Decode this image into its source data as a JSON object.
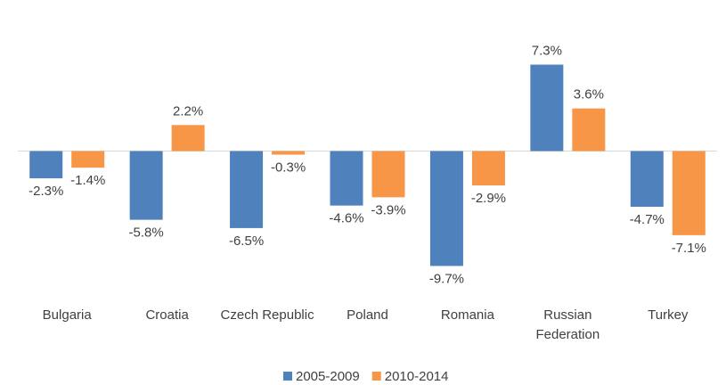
{
  "chart_data": {
    "type": "bar",
    "categories": [
      "Bulgaria",
      "Croatia",
      "Czech Republic",
      "Poland",
      "Romania",
      "Russian Federation",
      "Turkey"
    ],
    "series": [
      {
        "name": "2005-2009",
        "color": "#4f81bd",
        "values": [
          -2.3,
          -5.8,
          -6.5,
          -4.6,
          -9.7,
          7.3,
          -4.7
        ],
        "value_labels": [
          "-2.3%",
          "-5.8%",
          "-6.5%",
          "-4.6%",
          "-9.7%",
          "7.3%",
          "-4.7%"
        ]
      },
      {
        "name": "2010-2014",
        "color": "#f79646",
        "values": [
          -1.4,
          2.2,
          -0.3,
          -3.9,
          -2.9,
          3.6,
          -7.1
        ],
        "value_labels": [
          "-1.4%",
          "2.2%",
          "-0.3%",
          "-3.9%",
          "-2.9%",
          "3.6%",
          "-7.1%"
        ]
      }
    ],
    "ylim": [
      -12,
      10.5
    ],
    "legend": "bottom"
  }
}
